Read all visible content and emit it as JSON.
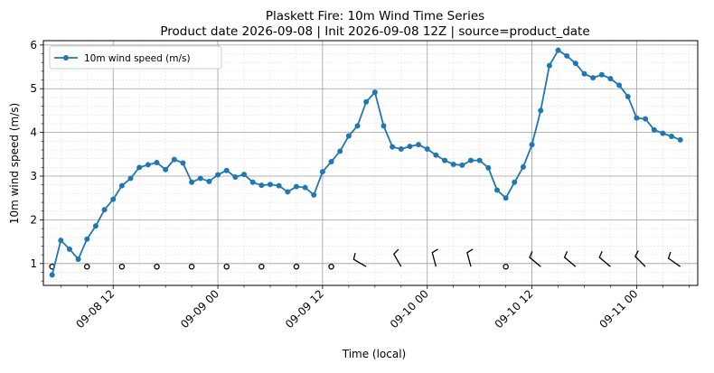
{
  "chart_data": {
    "type": "line",
    "title": "Plaskett Fire: 10m Wind Time Series",
    "subtitle": "Product date 2026-09-08 | Init 2026-09-08 12Z | source=product_date",
    "xlabel": "Time (local)",
    "ylabel": "10m wind speed (m/s)",
    "x_start": "2026-09-08 05:00",
    "x_step_hours": 1,
    "xlim": [
      "2026-09-08 04:00",
      "2026-09-11 07:00"
    ],
    "ylim": [
      0.5,
      6.1
    ],
    "y_ticks": [
      1,
      2,
      3,
      4,
      5,
      6
    ],
    "x_ticks": [
      {
        "label": "09-08 12",
        "time": "2026-09-08 12:00"
      },
      {
        "label": "09-09 00",
        "time": "2026-09-09 00:00"
      },
      {
        "label": "09-09 12",
        "time": "2026-09-09 12:00"
      },
      {
        "label": "09-10 00",
        "time": "2026-09-10 00:00"
      },
      {
        "label": "09-10 12",
        "time": "2026-09-10 12:00"
      },
      {
        "label": "09-11 00",
        "time": "2026-09-11 00:00"
      }
    ],
    "grid": true,
    "legend_position": "top-left",
    "series": [
      {
        "name": "10m wind speed (m/s)",
        "color": "#1f77b4",
        "values": [
          0.74,
          1.53,
          1.33,
          1.1,
          1.56,
          1.86,
          2.23,
          2.47,
          2.78,
          2.95,
          3.2,
          3.26,
          3.31,
          3.15,
          3.38,
          3.3,
          2.86,
          2.95,
          2.88,
          3.03,
          3.13,
          2.98,
          3.04,
          2.86,
          2.79,
          2.81,
          2.78,
          2.64,
          2.76,
          2.74,
          2.57,
          3.1,
          3.33,
          3.57,
          3.92,
          4.15,
          4.7,
          4.92,
          4.15,
          3.67,
          3.62,
          3.68,
          3.72,
          3.62,
          3.48,
          3.36,
          3.27,
          3.25,
          3.36,
          3.36,
          3.19,
          2.68,
          2.5,
          2.86,
          3.21,
          3.72,
          4.5,
          5.53,
          5.88,
          5.75,
          5.58,
          5.34,
          5.25,
          5.32,
          5.23,
          5.08,
          4.82,
          4.33,
          4.31,
          4.06,
          3.98,
          3.91,
          3.83
        ]
      }
    ],
    "barbs": {
      "y": 0.93,
      "every_hours": 4,
      "times": [
        "2026-09-08 05:00",
        "2026-09-08 09:00",
        "2026-09-08 13:00",
        "2026-09-08 17:00",
        "2026-09-08 21:00",
        "2026-09-09 01:00",
        "2026-09-09 05:00",
        "2026-09-09 09:00",
        "2026-09-09 13:00",
        "2026-09-09 17:00",
        "2026-09-09 21:00",
        "2026-09-10 01:00",
        "2026-09-10 05:00",
        "2026-09-10 09:00",
        "2026-09-10 13:00",
        "2026-09-10 17:00",
        "2026-09-10 21:00",
        "2026-09-11 01:00",
        "2026-09-11 05:00"
      ],
      "kind": [
        "calm",
        "calm",
        "calm",
        "calm",
        "calm",
        "calm",
        "calm",
        "calm",
        "calm",
        "barb",
        "barb",
        "barb",
        "barb",
        "calm",
        "barb",
        "barb",
        "barb",
        "barb",
        "barb"
      ],
      "direction_deg": [
        0,
        0,
        0,
        0,
        0,
        0,
        0,
        0,
        0,
        300,
        330,
        345,
        345,
        0,
        310,
        310,
        310,
        315,
        305
      ]
    }
  }
}
